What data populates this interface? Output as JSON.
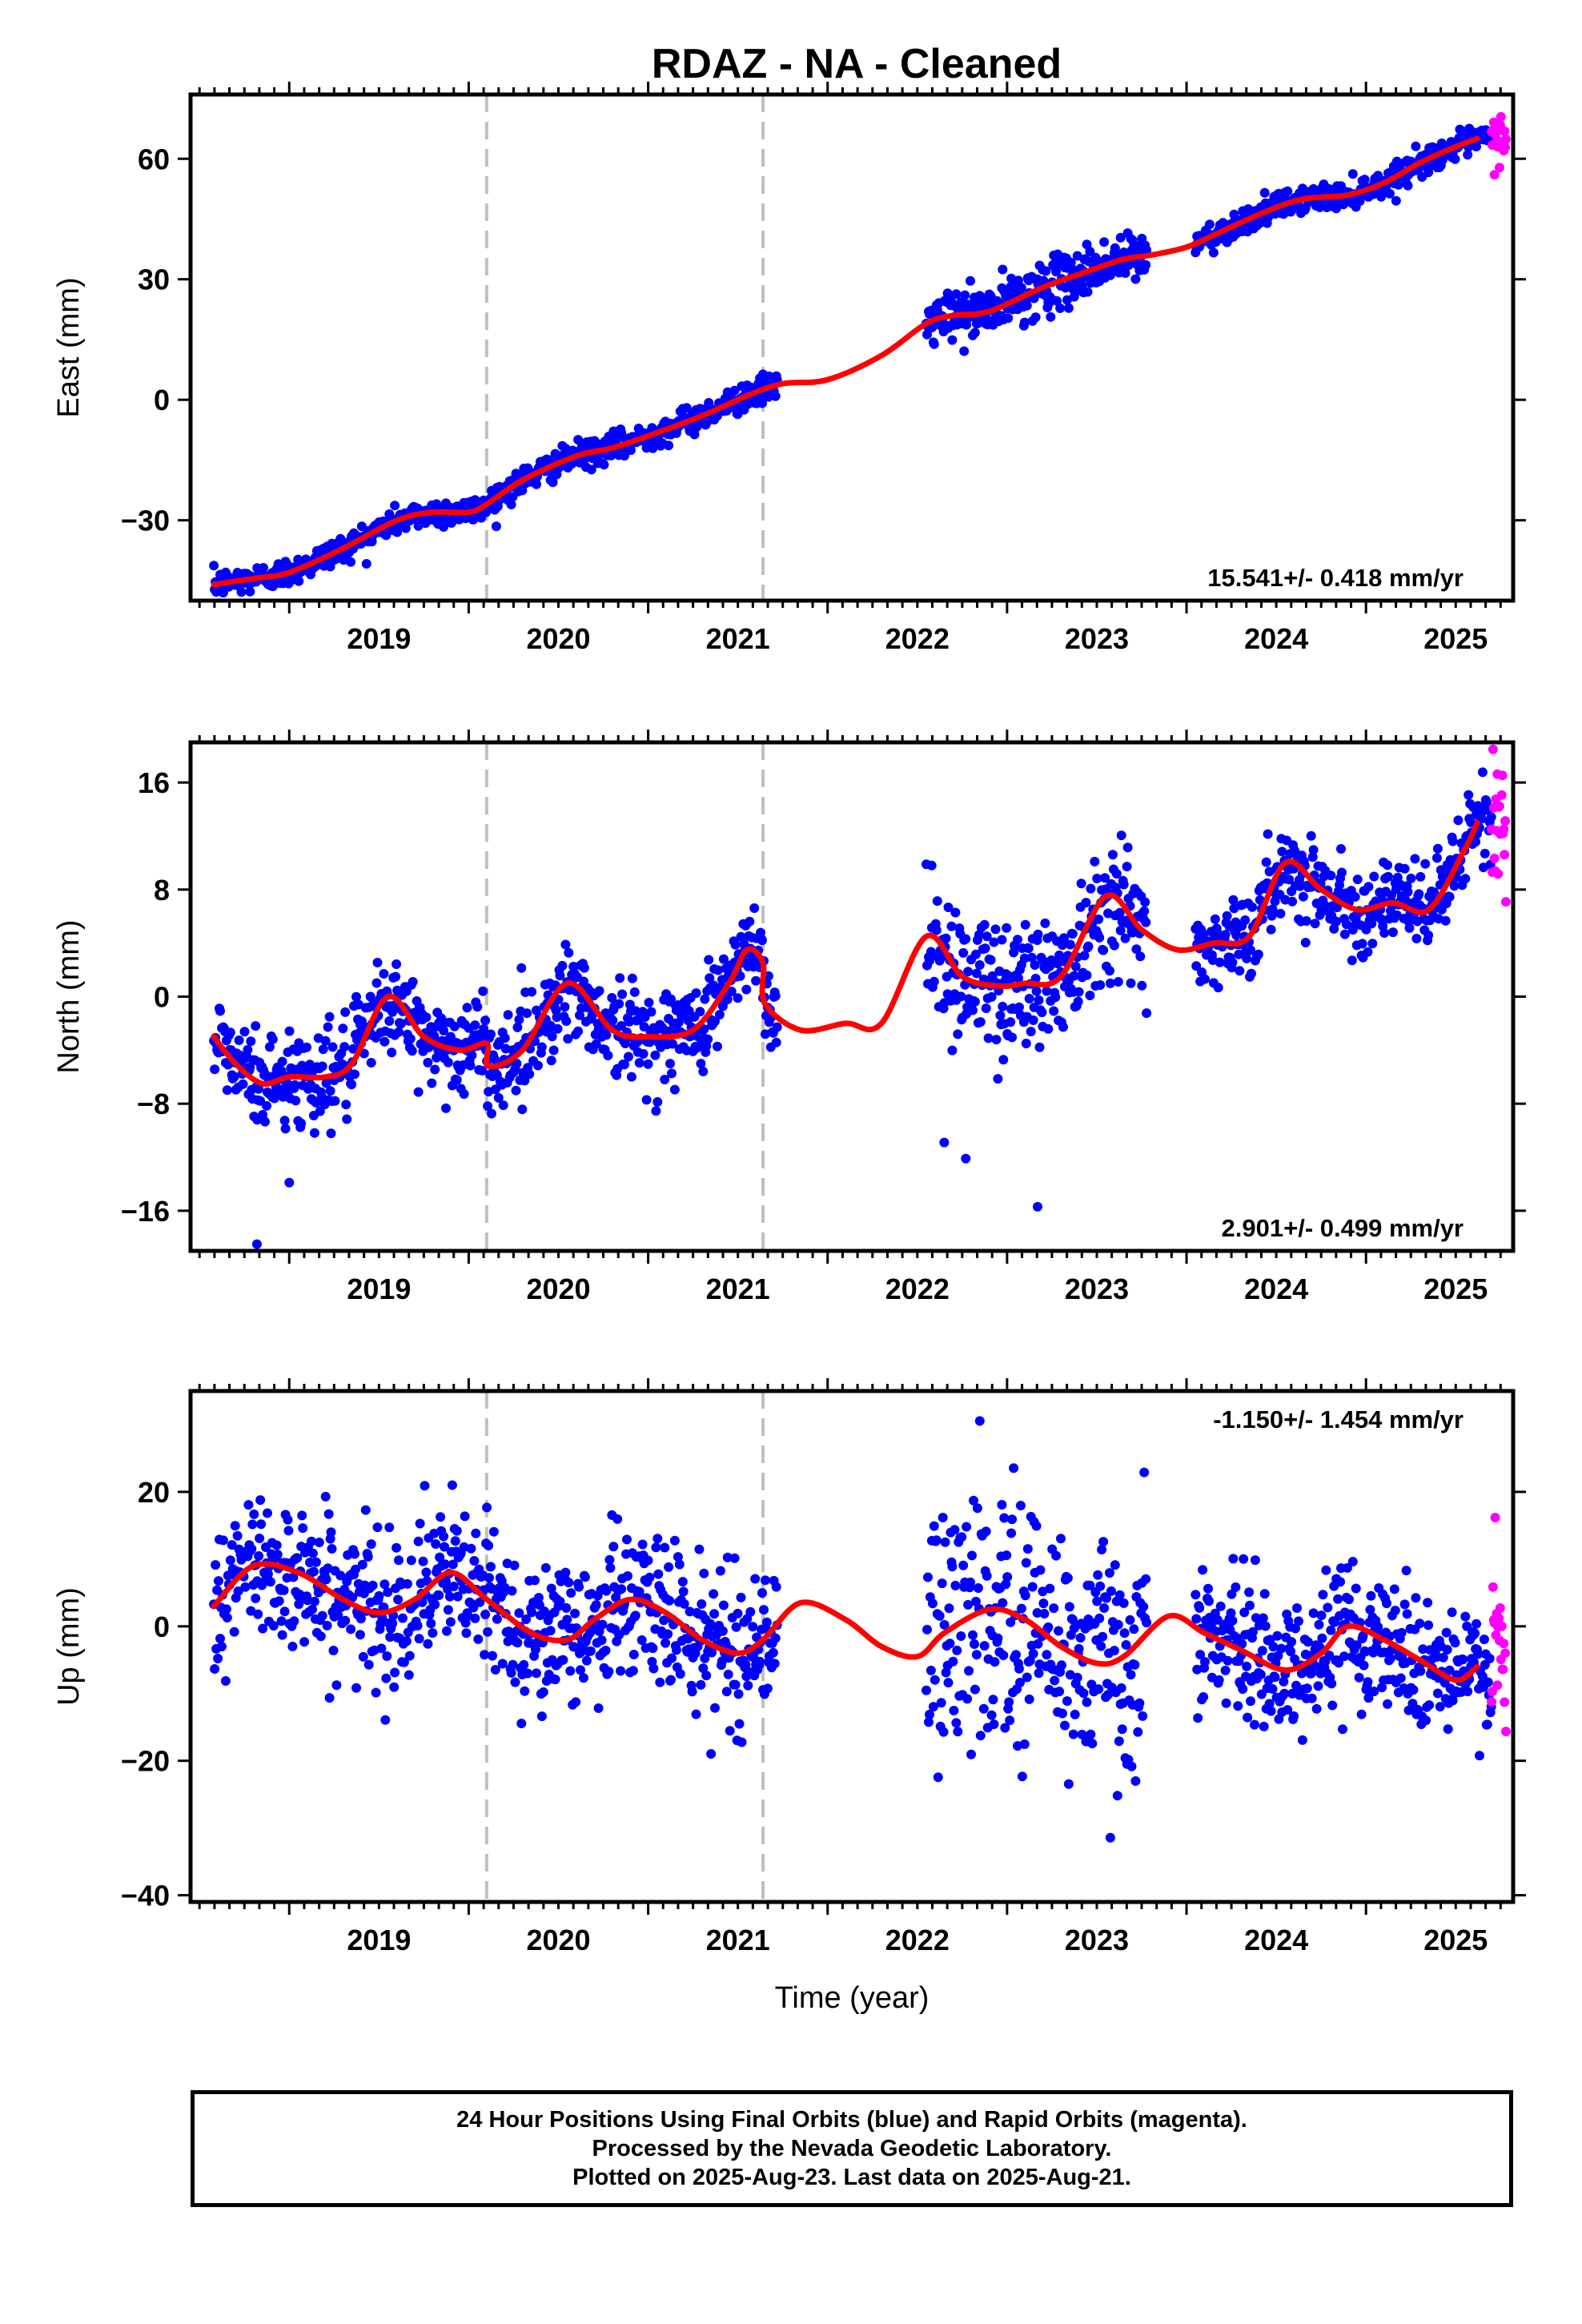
{
  "title": "RDAZ  - NA - Cleaned",
  "colors": {
    "final_orbits": "#0000ff",
    "rapid_orbits": "#ff00ff",
    "model_fit": "#ff0000",
    "break_lines": "#bfbfbf"
  },
  "chart_data": [
    {
      "type": "scatter",
      "name": "east",
      "ylabel": "East (mm)",
      "xlabel": "",
      "xlim": [
        2018.45,
        2025.82
      ],
      "ylim": [
        -50,
        76
      ],
      "yticks": [
        -30,
        0,
        30,
        60
      ],
      "xticks": [
        2019,
        2020,
        2021,
        2022,
        2023,
        2024,
        2025
      ],
      "rate_label": "15.541+/- 0.418 mm/yr",
      "rate_position": "bottom-right",
      "breaks": [
        2020.1,
        2021.64
      ],
      "segments": [
        [
          2018.58,
          2021.72
        ],
        [
          2022.55,
          2023.78
        ],
        [
          2024.05,
          2025.77
        ]
      ],
      "fit_x": [
        2018.58,
        2018.8,
        2019.0,
        2019.3,
        2019.6,
        2019.8,
        2020.0,
        2020.1,
        2020.3,
        2020.6,
        2020.8,
        2021.0,
        2021.3,
        2021.55,
        2021.75,
        2022.0,
        2022.3,
        2022.55,
        2022.7,
        2022.9,
        2023.2,
        2023.45,
        2023.65,
        2023.8,
        2024.0,
        2024.2,
        2024.45,
        2024.65,
        2024.9,
        2025.1,
        2025.3,
        2025.5,
        2025.62
      ],
      "fit_y": [
        -46,
        -44.5,
        -43,
        -37,
        -30,
        -28,
        -28,
        -26,
        -20,
        -14,
        -12,
        -9,
        -4,
        1,
        4,
        5,
        11,
        19,
        21,
        22,
        28,
        32,
        35,
        36,
        38,
        42,
        47,
        50,
        51,
        54,
        59,
        63,
        65
      ],
      "final_spread": 1.7,
      "final_spread_by_segment": [
        1.7,
        3.2,
        1.6
      ],
      "rapid_start": 2025.7,
      "rapid_spread": 3
    },
    {
      "type": "scatter",
      "name": "north",
      "ylabel": "North (mm)",
      "xlabel": "",
      "xlim": [
        2018.45,
        2025.82
      ],
      "ylim": [
        -19,
        19
      ],
      "yticks": [
        -16,
        -8,
        0,
        8,
        16
      ],
      "xticks": [
        2019,
        2020,
        2021,
        2022,
        2023,
        2024,
        2025
      ],
      "rate_label": "2.901+/- 0.499 mm/yr",
      "rate_position": "bottom-right",
      "breaks": [
        2020.1,
        2021.64
      ],
      "segments": [
        [
          2018.58,
          2021.72
        ],
        [
          2022.55,
          2023.78
        ],
        [
          2024.05,
          2025.77
        ]
      ],
      "fit_x": [
        2018.58,
        2018.7,
        2018.85,
        2019.0,
        2019.2,
        2019.35,
        2019.55,
        2019.75,
        2019.95,
        2020.1,
        2020.11,
        2020.3,
        2020.55,
        2020.8,
        2021.0,
        2021.25,
        2021.45,
        2021.55,
        2021.64,
        2021.65,
        2021.85,
        2022.1,
        2022.3,
        2022.55,
        2022.75,
        2022.95,
        2023.1,
        2023.3,
        2023.55,
        2023.75,
        2023.95,
        2024.15,
        2024.35,
        2024.55,
        2024.75,
        2024.95,
        2025.15,
        2025.35,
        2025.55,
        2025.62
      ],
      "fit_y": [
        -3,
        -5,
        -6.5,
        -6,
        -6,
        -5,
        0,
        -3,
        -4,
        -3.5,
        -5.2,
        -4,
        1,
        -2.5,
        -3,
        -2.5,
        1,
        3.5,
        2.5,
        -0.5,
        -2.5,
        -2,
        -2,
        4.5,
        1.5,
        0.8,
        1,
        1.5,
        7.5,
        5,
        3.5,
        4,
        4.5,
        10,
        8,
        6.5,
        7,
        6.5,
        11,
        13
      ],
      "final_spread": 1.8,
      "final_spread_by_segment": [
        1.8,
        2.6,
        1.5
      ],
      "outliers": [
        [
          2018.82,
          -18.5
        ],
        [
          2019.0,
          -13.9
        ],
        [
          2022.65,
          -10.9
        ],
        [
          2022.77,
          -12.1
        ],
        [
          2023.17,
          -15.7
        ],
        [
          2022.58,
          9.8
        ]
      ],
      "rapid_start": 2025.7,
      "rapid_spread": 3
    },
    {
      "type": "scatter",
      "name": "up",
      "ylabel": "Up (mm)",
      "xlabel": "Time (year)",
      "xlim": [
        2018.45,
        2025.82
      ],
      "ylim": [
        -41,
        35
      ],
      "yticks": [
        -40,
        -20,
        0,
        20
      ],
      "xticks": [
        2019,
        2020,
        2021,
        2022,
        2023,
        2024,
        2025
      ],
      "rate_label": "-1.150+/- 1.454 mm/yr",
      "rate_position": "top-right",
      "breaks": [
        2020.1,
        2021.64
      ],
      "segments": [
        [
          2018.58,
          2021.72
        ],
        [
          2022.55,
          2023.78
        ],
        [
          2024.05,
          2025.77
        ]
      ],
      "fit_x": [
        2018.58,
        2018.8,
        2019.05,
        2019.3,
        2019.5,
        2019.7,
        2019.9,
        2020.1,
        2020.35,
        2020.55,
        2020.7,
        2020.9,
        2021.1,
        2021.3,
        2021.5,
        2021.64,
        2021.85,
        2022.1,
        2022.3,
        2022.5,
        2022.65,
        2022.9,
        2023.1,
        2023.3,
        2023.5,
        2023.65,
        2023.9,
        2024.1,
        2024.3,
        2024.55,
        2024.75,
        2024.9,
        2025.1,
        2025.3,
        2025.5,
        2025.62
      ],
      "fit_y": [
        3,
        9,
        8,
        4,
        2,
        4,
        8,
        4,
        -1,
        -2,
        1,
        4,
        2,
        -2,
        -4,
        -2,
        3.5,
        1,
        -3,
        -4.5,
        -1,
        2.5,
        1,
        -3,
        -5.5,
        -4.5,
        1.5,
        -1,
        -3.5,
        -6.5,
        -4,
        0,
        -2,
        -5,
        -8,
        -6
      ],
      "final_spread": 5.5,
      "final_spread_by_segment": [
        5.5,
        10,
        5
      ],
      "rapid_start": 2025.7,
      "rapid_spread": 8
    }
  ],
  "footer": {
    "line1": "24 Hour Positions Using Final Orbits (blue) and Rapid Orbits (magenta).",
    "line2": "Processed by the Nevada Geodetic Laboratory.",
    "line3": "Plotted on 2025-Aug-23. Last data on 2025-Aug-21."
  }
}
